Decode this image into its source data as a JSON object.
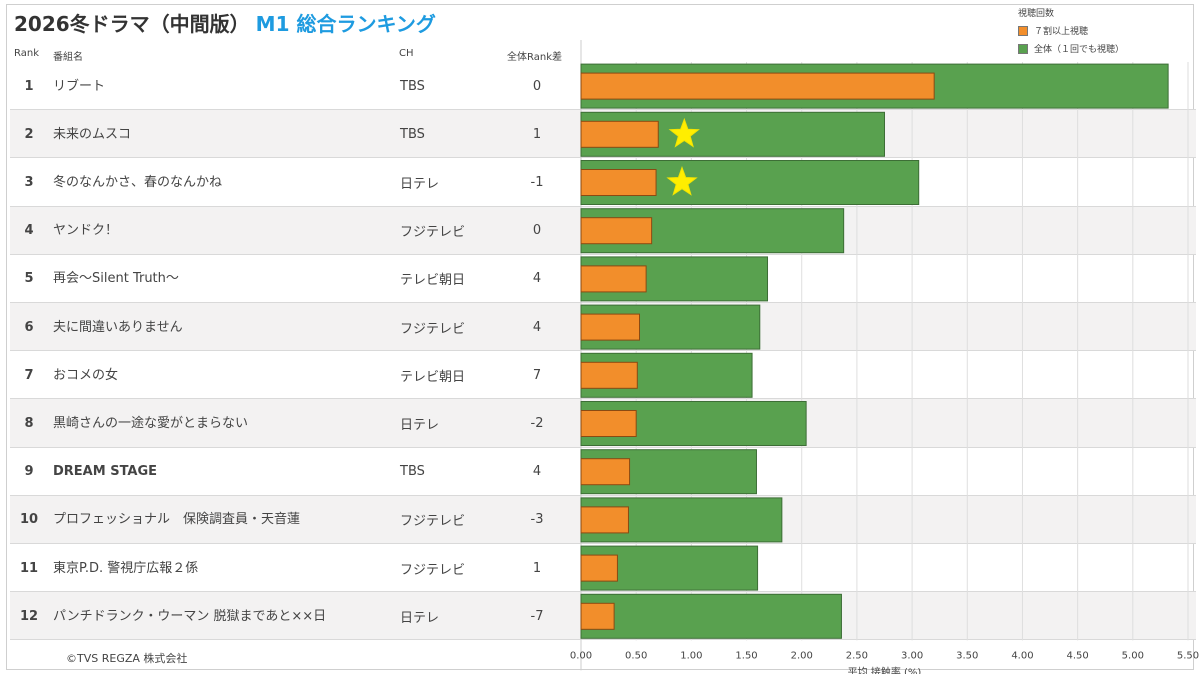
{
  "title": {
    "main": "2026冬ドラマ（中間版）",
    "highlight": "M1 総合ランキング"
  },
  "headers": {
    "rank": "Rank",
    "name": "番組名",
    "ch": "CH",
    "change": "全体Rank差"
  },
  "legend": {
    "title": "視聴回数",
    "items": [
      {
        "label": "７割以上視聴",
        "color": "#f28e2b"
      },
      {
        "label": "全体（１回でも視聴）",
        "color": "#59a14f"
      }
    ]
  },
  "rows": [
    {
      "rank": "1",
      "name": "リブート",
      "ch": "TBS",
      "change": "0",
      "star": false
    },
    {
      "rank": "2",
      "name": "未来のムスコ",
      "ch": "TBS",
      "change": "1",
      "star": true
    },
    {
      "rank": "3",
      "name": "冬のなんかさ、春のなんかね",
      "ch": "日テレ",
      "change": "-1",
      "star": true
    },
    {
      "rank": "4",
      "name": "ヤンドク！",
      "ch": "フジテレビ",
      "change": "0",
      "star": false
    },
    {
      "rank": "5",
      "name": "再会～Silent Truth～",
      "ch": "テレビ朝日",
      "change": "4",
      "star": false
    },
    {
      "rank": "6",
      "name": "夫に間違いありません",
      "ch": "フジテレビ",
      "change": "4",
      "star": false
    },
    {
      "rank": "7",
      "name": "おコメの女",
      "ch": "テレビ朝日",
      "change": "7",
      "star": false
    },
    {
      "rank": "8",
      "name": "黒崎さんの一途な愛がとまらない",
      "ch": "日テレ",
      "change": "-2",
      "star": false
    },
    {
      "rank": "9",
      "name": "DREAM STAGE",
      "ch": "TBS",
      "change": "4",
      "star": false
    },
    {
      "rank": "10",
      "name": "プロフェッショナル　保険調査員・天音蓮",
      "ch": "フジテレビ",
      "change": "-3",
      "star": false
    },
    {
      "rank": "11",
      "name": "東京P.D. 警視庁広報２係",
      "ch": "フジテレビ",
      "change": "1",
      "star": false
    },
    {
      "rank": "12",
      "name": "パンチドランク・ウーマン 脱獄まであと××日",
      "ch": "日テレ",
      "change": "-7",
      "star": false
    }
  ],
  "chart_data": {
    "type": "bar",
    "orientation": "horizontal",
    "categories": [
      "リブート",
      "未来のムスコ",
      "冬のなんかさ、春のなんかね",
      "ヤンドク！",
      "再会～Silent Truth～",
      "夫に間違いありません",
      "おコメの女",
      "黒崎さんの一途な愛がとまらない",
      "DREAM STAGE",
      "プロフェッショナル　保険調査員・天音蓮",
      "東京P.D. 警視庁広報２係",
      "パンチドランク・ウーマン 脱獄まであと××日"
    ],
    "series": [
      {
        "name": "全体（１回でも視聴）",
        "color": "#59a14f",
        "values": [
          5.32,
          2.75,
          3.06,
          2.38,
          1.69,
          1.62,
          1.55,
          2.04,
          1.59,
          1.82,
          1.6,
          2.36
        ]
      },
      {
        "name": "７割以上視聴",
        "color": "#f28e2b",
        "values": [
          3.2,
          0.7,
          0.68,
          0.64,
          0.59,
          0.53,
          0.51,
          0.5,
          0.44,
          0.43,
          0.33,
          0.3
        ]
      }
    ],
    "xlabel": "平均 接触率 (%)",
    "xlim": [
      0,
      5.5
    ],
    "xticks": [
      "0.00",
      "0.50",
      "1.00",
      "1.50",
      "2.00",
      "2.50",
      "3.00",
      "3.50",
      "4.00",
      "4.50",
      "5.00",
      "5.50"
    ],
    "star_color": "#ffee00",
    "grid": true
  },
  "copyright": "©TVS REGZA 株式会社"
}
